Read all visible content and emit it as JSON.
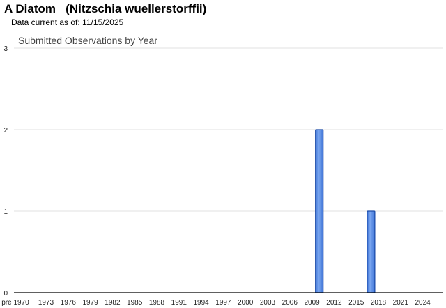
{
  "header": {
    "title": "A Diatom   (Nitzschia wuellerstorffii)",
    "subtitle": "Data current as of: 11/15/2025"
  },
  "chart_data": {
    "type": "bar",
    "title": "Submitted Observations by Year",
    "xlabel": "",
    "ylabel": "",
    "categories": [
      "pre 1970",
      "1970",
      "1971",
      "1972",
      "1973",
      "1974",
      "1975",
      "1976",
      "1977",
      "1978",
      "1979",
      "1980",
      "1981",
      "1982",
      "1983",
      "1984",
      "1985",
      "1986",
      "1987",
      "1988",
      "1989",
      "1990",
      "1991",
      "1992",
      "1993",
      "1994",
      "1995",
      "1996",
      "1997",
      "1998",
      "1999",
      "2000",
      "2001",
      "2002",
      "2003",
      "2004",
      "2005",
      "2006",
      "2007",
      "2008",
      "2009",
      "2010",
      "2011",
      "2012",
      "2013",
      "2014",
      "2015",
      "2016",
      "2017",
      "2018",
      "2019",
      "2020",
      "2021",
      "2022",
      "2023",
      "2024",
      "2025"
    ],
    "x_tick_labels": [
      "pre 1970",
      "1973",
      "1976",
      "1979",
      "1982",
      "1985",
      "1988",
      "1991",
      "1994",
      "1997",
      "2000",
      "2003",
      "2006",
      "2009",
      "2012",
      "2015",
      "2018",
      "2021",
      "2024"
    ],
    "bars": [
      {
        "category": "2010",
        "value": 2
      },
      {
        "category": "2017",
        "value": 1
      }
    ],
    "ylim": [
      0,
      3
    ],
    "y_ticks": [
      0,
      1,
      2,
      3
    ],
    "grid": true,
    "colors": {
      "bar": "#5a8de6",
      "bar_border": "#1a4aa8"
    }
  }
}
